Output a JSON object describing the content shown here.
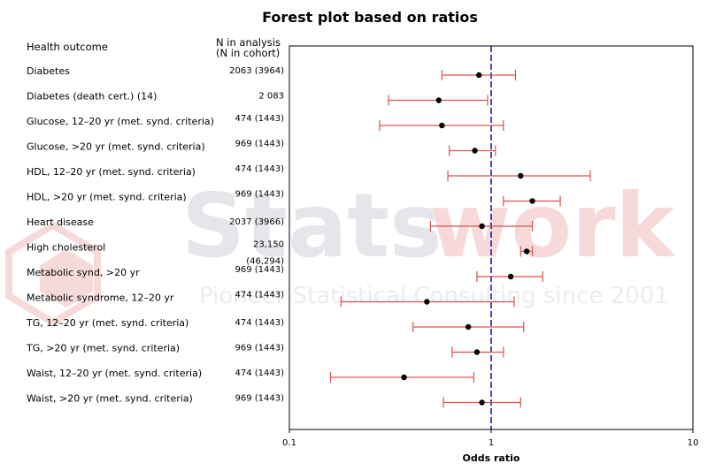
{
  "watermark": {
    "brand_a": "Stats",
    "brand_b": "work",
    "tagline": "Pioneer Statistical Consulting since 2001",
    "brand_a_color": "#e6e6ea",
    "brand_b_color": "#f7d9d9",
    "tagline_color": "#ececf0"
  },
  "colors": {
    "ci_line": "#d9534f",
    "point": "#000000",
    "ref_line": "#1a1aa6",
    "frame": "#000000"
  },
  "chart_data": {
    "type": "forest",
    "title": "Forest plot based on  ratios",
    "xlabel": "Odds ratio",
    "x_scale": "log",
    "xlim": [
      0.1,
      10
    ],
    "xticks": [
      "0.1",
      "1",
      "10"
    ],
    "reference_line": 1,
    "column_headers": {
      "outcome": "Health outcome",
      "n_line1": "N in analysis",
      "n_line2": "(N in cohort)"
    },
    "rows": [
      {
        "outcome": "Diabetes",
        "n": "2063 (3964)",
        "or": 0.87,
        "lower": 0.57,
        "upper": 1.32
      },
      {
        "outcome": "Diabetes (death cert.) (14)",
        "n": "2 083",
        "or": 0.55,
        "lower": 0.31,
        "upper": 0.96
      },
      {
        "outcome": "Glucose, 12–20 yr (met. synd. criteria)",
        "n": "474 (1443)",
        "or": 0.57,
        "lower": 0.28,
        "upper": 1.15
      },
      {
        "outcome": "Glucose, >20 yr (met. synd. criteria)",
        "n": "969 (1443)",
        "or": 0.83,
        "lower": 0.62,
        "upper": 1.05
      },
      {
        "outcome": "HDL, 12–20 yr (met. synd. criteria)",
        "n": "474 (1443)",
        "or": 1.4,
        "lower": 0.61,
        "upper": 3.1
      },
      {
        "outcome": "HDL, >20 yr (met. synd. criteria)",
        "n": "969 (1443)",
        "or": 1.6,
        "lower": 1.15,
        "upper": 2.2
      },
      {
        "outcome": "Heart disease",
        "n": "2037 (3966)",
        "or": 0.9,
        "lower": 0.5,
        "upper": 1.6
      },
      {
        "outcome": "High cholesterol",
        "n": "23,150",
        "n2": "(46,294)",
        "or": 1.5,
        "lower": 1.4,
        "upper": 1.6
      },
      {
        "outcome": "Metabolic synd, >20 yr",
        "n": "969 (1443)",
        "or": 1.25,
        "lower": 0.85,
        "upper": 1.8
      },
      {
        "outcome": "Metabolic syndrome,  12–20 yr",
        "n": "474 (1443)",
        "or": 0.48,
        "lower": 0.18,
        "upper": 1.3
      },
      {
        "outcome": "TG, 12–20 yr (met. synd. criteria)",
        "n": "474 (1443)",
        "or": 0.77,
        "lower": 0.41,
        "upper": 1.45
      },
      {
        "outcome": "TG, >20 yr (met. synd. criteria)",
        "n": "969 (1443)",
        "or": 0.85,
        "lower": 0.64,
        "upper": 1.15
      },
      {
        "outcome": "Waist, 12–20 yr (met. synd. criteria)",
        "n": "474 (1443)",
        "or": 0.37,
        "lower": 0.16,
        "upper": 0.82
      },
      {
        "outcome": "Waist, >20 yr (met. synd. criteria)",
        "n": "969 (1443)",
        "or": 0.9,
        "lower": 0.58,
        "upper": 1.4
      }
    ]
  }
}
